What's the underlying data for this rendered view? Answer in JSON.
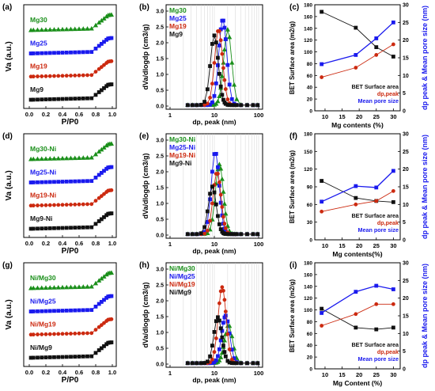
{
  "figure": {
    "rows": [
      {
        "iso": {
          "panel_label": "(a)",
          "ylabel": "Va (a.u.)",
          "xlabel": "P/P0",
          "xticks": [
            "0.0",
            "0.2",
            "0.4",
            "0.6",
            "0.8",
            "1.0"
          ],
          "series": [
            {
              "name": "Mg30",
              "color": "#1a8f1a"
            },
            {
              "name": "Mg25",
              "color": "#1a1aee"
            },
            {
              "name": "Mg19",
              "color": "#cc2a10"
            },
            {
              "name": "Mg9",
              "color": "#111111"
            }
          ]
        },
        "psd": {
          "panel_label": "(b)",
          "ylabel": "dVa/dlogdp (cm3/g)",
          "xlabel": "dp, peak (nm)",
          "xticks": [
            "1",
            "10",
            "100"
          ],
          "yticks": [
            "0.0",
            "0.5",
            "1.0",
            "1.5",
            "2.0",
            "2.5",
            "3.0"
          ],
          "ylim": [
            0,
            3.0
          ],
          "legend": [
            "Mg30",
            "Mg25",
            "Mg19",
            "Mg9"
          ],
          "series": [
            {
              "name": "Mg30",
              "color": "#1a8f1a",
              "peak": 20.0,
              "height": 2.38
            },
            {
              "name": "Mg25",
              "color": "#1a1aee",
              "peak": 15.5,
              "height": 2.7
            },
            {
              "name": "Mg19",
              "color": "#cc2a10",
              "peak": 12.5,
              "height": 2.38
            },
            {
              "name": "Mg9",
              "color": "#111111",
              "peak": 10.0,
              "height": 2.2
            }
          ]
        },
        "bet": {
          "panel_label": "(c)",
          "xlabel": "Mg contents (%)",
          "ylabel_left": "BET Surface area (m2/g)",
          "ylabel_right": "dp peak & Mean pore size (nm)",
          "xticks": [
            "10",
            "15",
            "20",
            "25",
            "30"
          ],
          "yticks_left": [
            "0",
            "20",
            "40",
            "60",
            "80",
            "100",
            "120",
            "140",
            "160",
            "180"
          ],
          "yticks_right": [
            "0",
            "5",
            "10",
            "15",
            "20",
            "25",
            "30"
          ],
          "legend": [
            "BET Surface area",
            "dp,peak",
            "Mean pore size"
          ],
          "mg": [
            9,
            19,
            25,
            30
          ],
          "bet": [
            168,
            141,
            108,
            92
          ],
          "dp_peak": [
            9.5,
            12.2,
            15.8,
            18.8
          ],
          "mean_pore": [
            13.2,
            15.8,
            20.5,
            25.0
          ]
        }
      },
      {
        "iso": {
          "panel_label": "(d)",
          "ylabel": "Va (a.u.)",
          "xlabel": "P/P0",
          "xticks": [
            "0.0",
            "0.2",
            "0.4",
            "0.6",
            "0.8",
            "1.0"
          ],
          "series": [
            {
              "name": "Mg30-Ni",
              "color": "#1a8f1a"
            },
            {
              "name": "Mg25-Ni",
              "color": "#1a1aee"
            },
            {
              "name": "Mg19-Ni",
              "color": "#cc2a10"
            },
            {
              "name": "Mg9-Ni",
              "color": "#111111"
            }
          ]
        },
        "psd": {
          "panel_label": "(e)",
          "ylabel": "dVa/dlogdp (cm3/g)",
          "xlabel": "dp, peak (nm)",
          "xticks": [
            "1",
            "10",
            "100"
          ],
          "yticks": [
            "0.0",
            "0.5",
            "1.0",
            "1.5",
            "2.0",
            "2.5",
            "3.0"
          ],
          "ylim": [
            0,
            3.0
          ],
          "legend": [
            "Mg30-Ni",
            "Mg25-Ni",
            "Mg19-Ni",
            "Mg9-Ni"
          ],
          "series": [
            {
              "name": "Mg30-Ni",
              "color": "#1a8f1a",
              "peak": 13.0,
              "height": 2.2
            },
            {
              "name": "Mg25-Ni",
              "color": "#1a1aee",
              "peak": 10.5,
              "height": 2.6
            },
            {
              "name": "Mg19-Ni",
              "color": "#cc2a10",
              "peak": 11.5,
              "height": 1.95
            },
            {
              "name": "Mg9-Ni",
              "color": "#111111",
              "peak": 9.0,
              "height": 1.5
            }
          ]
        },
        "bet": {
          "panel_label": "(f)",
          "xlabel": "Mg contents(%)",
          "ylabel_left": "BET Surface area (m2/g)",
          "ylabel_right": "dp peak & Mean pore size (nm)",
          "xticks": [
            "10",
            "15",
            "20",
            "25",
            "30"
          ],
          "yticks_left": [
            "0",
            "30",
            "60",
            "90",
            "120",
            "150",
            "180"
          ],
          "yticks_right": [
            "0",
            "5",
            "10",
            "15",
            "20",
            "25",
            "30"
          ],
          "legend": [
            "BET Surface area",
            "dp,peak",
            "Mean pore size"
          ],
          "mg": [
            9,
            19,
            25,
            30
          ],
          "bet": [
            100,
            71,
            66,
            64
          ],
          "dp_peak": [
            8.0,
            10.0,
            11.0,
            13.8
          ],
          "mean_pore": [
            10.8,
            15.2,
            14.8,
            19.5
          ]
        }
      },
      {
        "iso": {
          "panel_label": "(g)",
          "ylabel": "Va (a.u.)",
          "xlabel": "P/P0",
          "xticks": [
            "0.0",
            "0.2",
            "0.4",
            "0.6",
            "0.8",
            "1.0"
          ],
          "series": [
            {
              "name": "Ni/Mg30",
              "color": "#1a8f1a"
            },
            {
              "name": "Ni/Mg25",
              "color": "#1a1aee"
            },
            {
              "name": "Ni/Mg19",
              "color": "#cc2a10"
            },
            {
              "name": "Ni/Mg9",
              "color": "#111111"
            }
          ]
        },
        "psd": {
          "panel_label": "(h)",
          "ylabel": "dVa/dlogdp (cm3/g)",
          "xlabel": "dp, peak (nm)",
          "xticks": [
            "1",
            "10",
            "100"
          ],
          "yticks": [
            "0.0",
            "0.5",
            "1.0",
            "1.5",
            "2.0",
            "2.5",
            "3.0"
          ],
          "ylim": [
            0,
            3.0
          ],
          "legend": [
            "Ni/Mg30",
            "Ni/Mg25",
            "Ni/Mg19",
            "Ni/Mg9"
          ],
          "series": [
            {
              "name": "Ni/Mg30",
              "color": "#1a8f1a",
              "peak": 21.0,
              "height": 1.2
            },
            {
              "name": "Ni/Mg25",
              "color": "#1a1aee",
              "peak": 18.0,
              "height": 1.5
            },
            {
              "name": "Ni/Mg19",
              "color": "#cc2a10",
              "peak": 15.0,
              "height": 2.4
            },
            {
              "name": "Ni/Mg9",
              "color": "#111111",
              "peak": 12.0,
              "height": 1.45
            }
          ]
        },
        "bet": {
          "panel_label": "(i)",
          "xlabel": "Mg Content (%)",
          "ylabel_left": "BET Surface area (m2/g)",
          "ylabel_right": "dp peak & Mean pore size (nm)",
          "xticks": [
            "10",
            "15",
            "20",
            "25",
            "30"
          ],
          "yticks_left": [
            "0",
            "20",
            "40",
            "60",
            "80",
            "100",
            "120",
            "140",
            "160",
            "180"
          ],
          "yticks_right": [
            "0",
            "5",
            "10",
            "15",
            "20",
            "25",
            "30"
          ],
          "legend": [
            "BET Surface area",
            "dp,peak",
            "Mean pore size"
          ],
          "mg": [
            9,
            19,
            25,
            30
          ],
          "bet": [
            102,
            70,
            67,
            70
          ],
          "dp_peak": [
            12.2,
            15.5,
            18.3,
            18.3
          ],
          "mean_pore": [
            15.8,
            21.8,
            23.5,
            22.5
          ]
        }
      }
    ]
  }
}
